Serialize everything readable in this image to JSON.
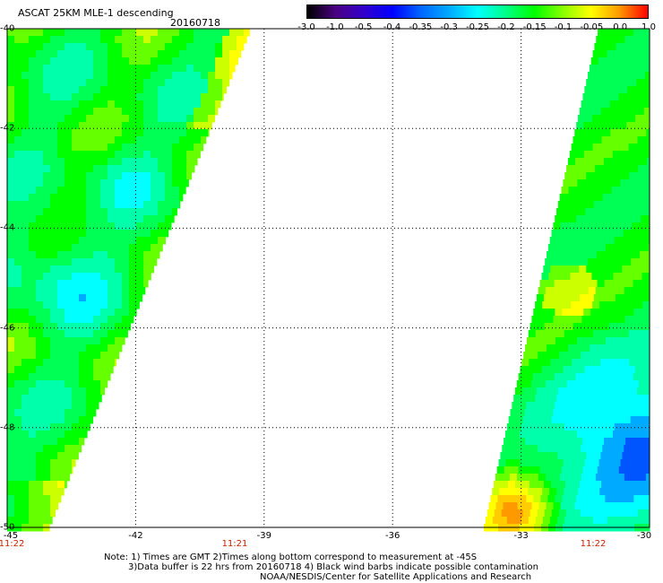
{
  "header": {
    "title": "ASCAT 25KM MLE-1 descending",
    "date": "20160718"
  },
  "colorbar": {
    "labels": [
      "-3.0",
      "-1.0",
      "-0.5",
      "-0.4",
      "-0.35",
      "-0.3",
      "-0.25",
      "-0.2",
      "-0.15",
      "-0.1",
      "-0.05",
      "0.0",
      "1.0"
    ],
    "colors": [
      "#000000",
      "#4b0082",
      "#3300cc",
      "#0000ff",
      "#0066ff",
      "#00aaff",
      "#00ffff",
      "#00ff88",
      "#00ff00",
      "#88ff00",
      "#ffff00",
      "#ff9900",
      "#ff0000"
    ]
  },
  "axes": {
    "y_labels": [
      "-40",
      "-42",
      "-44",
      "-46",
      "-48",
      "-50"
    ],
    "x_labels": [
      "-45",
      "-42",
      "-39",
      "-36",
      "-33",
      "-30"
    ],
    "x_range": [
      -45,
      -30
    ],
    "y_range": [
      -50,
      -40
    ]
  },
  "times": [
    "11:22",
    "11:21",
    "11:22"
  ],
  "notes": [
    "Note: 1) Times are GMT 2)Times along bottom correspond to measurement at -45S",
    "3)Data buffer is 22 hrs from 20160718 4) Black wind barbs indicate possible contamination",
    "NOAA/NESDIS/Center for Satellite Applications and Research"
  ]
}
